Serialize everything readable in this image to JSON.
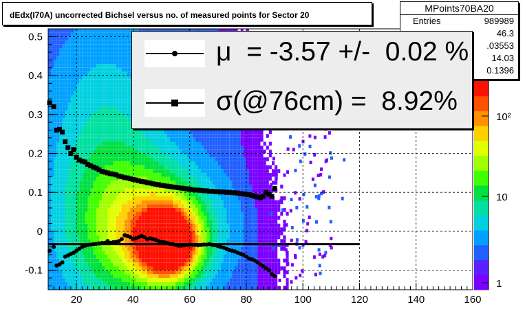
{
  "title": "dEdx(I70A) uncorrected Bichsel versus no. of measured points for Sector 20",
  "stats": {
    "name": "MPoints70BA20",
    "rows": [
      {
        "label": "Entries",
        "value": "989989"
      },
      {
        "label": "",
        "value": "46.3"
      },
      {
        "label": "",
        "value": ".03553"
      },
      {
        "label": "",
        "value": "14.03"
      },
      {
        "label": "",
        "value": "0.1396"
      }
    ]
  },
  "legend": {
    "mu_text": "μ  = -3.57 +/-  0.02 %",
    "sigma_text": "σ(@76cm) =  8.92%"
  },
  "colors": {
    "palette": [
      "#7a00ff",
      "#5a20ff",
      "#2060ff",
      "#00a0ff",
      "#00d0e0",
      "#00e0a0",
      "#00e040",
      "#40ff00",
      "#a0ff00",
      "#e0ff00",
      "#ffd000",
      "#ff9000",
      "#ff5000",
      "#ff1000"
    ]
  },
  "chart_data": {
    "type": "heatmap",
    "xlim": [
      10,
      160
    ],
    "ylim": [
      -0.15,
      0.52
    ],
    "x_ticks": [
      "20",
      "40",
      "60",
      "80",
      "100",
      "120",
      "140",
      "160"
    ],
    "y_ticks": [
      "-0.1",
      "0",
      "0.1",
      "0.2",
      "0.3",
      "0.4",
      "0.5"
    ],
    "color_scale": {
      "type": "log",
      "ticks": [
        "1",
        "10",
        "10²"
      ]
    },
    "grid": true,
    "mean_points": [
      [
        10.5,
        -0.05
      ],
      [
        12,
        -0.04
      ],
      [
        13,
        -0.088
      ],
      [
        14,
        -0.085
      ],
      [
        15,
        -0.08
      ],
      [
        16,
        -0.065
      ],
      [
        17,
        -0.062
      ],
      [
        18,
        -0.058
      ],
      [
        19,
        -0.055
      ],
      [
        20,
        -0.05
      ],
      [
        21,
        -0.045
      ],
      [
        22,
        -0.04
      ],
      [
        23,
        -0.037
      ],
      [
        24,
        -0.035
      ],
      [
        25,
        -0.034
      ],
      [
        26,
        -0.033
      ],
      [
        27,
        -0.032
      ],
      [
        28,
        -0.031
      ],
      [
        29,
        -0.03
      ],
      [
        30,
        -0.03
      ],
      [
        31,
        -0.025
      ],
      [
        32,
        -0.03
      ],
      [
        33,
        -0.028
      ],
      [
        34,
        -0.027
      ],
      [
        35,
        -0.025
      ],
      [
        36,
        -0.02
      ],
      [
        37,
        -0.01
      ],
      [
        38,
        -0.012
      ],
      [
        39,
        -0.015
      ],
      [
        40,
        -0.02
      ],
      [
        41,
        -0.018
      ],
      [
        42,
        -0.015
      ],
      [
        43,
        -0.012
      ],
      [
        44,
        -0.015
      ],
      [
        45,
        -0.02
      ],
      [
        46,
        -0.018
      ],
      [
        47,
        -0.02
      ],
      [
        48,
        -0.022
      ],
      [
        49,
        -0.025
      ],
      [
        50,
        -0.027
      ],
      [
        51,
        -0.028
      ],
      [
        52,
        -0.03
      ],
      [
        53,
        -0.032
      ],
      [
        54,
        -0.033
      ],
      [
        55,
        -0.035
      ],
      [
        56,
        -0.037
      ],
      [
        57,
        -0.037
      ],
      [
        58,
        -0.036
      ],
      [
        59,
        -0.035
      ],
      [
        60,
        -0.034
      ],
      [
        61,
        -0.035
      ],
      [
        62,
        -0.035
      ],
      [
        63,
        -0.036
      ],
      [
        64,
        -0.035
      ],
      [
        65,
        -0.034
      ],
      [
        66,
        -0.034
      ],
      [
        67,
        -0.033
      ],
      [
        68,
        -0.035
      ],
      [
        69,
        -0.036
      ],
      [
        70,
        -0.038
      ],
      [
        71,
        -0.04
      ],
      [
        72,
        -0.042
      ],
      [
        73,
        -0.045
      ],
      [
        74,
        -0.048
      ],
      [
        75,
        -0.05
      ],
      [
        76,
        -0.052
      ],
      [
        77,
        -0.055
      ],
      [
        78,
        -0.058
      ],
      [
        79,
        -0.06
      ],
      [
        80,
        -0.065
      ],
      [
        81,
        -0.07
      ],
      [
        82,
        -0.072
      ],
      [
        83,
        -0.075
      ],
      [
        84,
        -0.08
      ],
      [
        85,
        -0.085
      ],
      [
        86,
        -0.09
      ],
      [
        87,
        -0.095
      ],
      [
        88,
        -0.1
      ],
      [
        89,
        -0.11
      ],
      [
        90,
        -0.115
      ]
    ],
    "sigma_points": [
      [
        10.5,
        0.33
      ],
      [
        12,
        0.32
      ],
      [
        13,
        0.26
      ],
      [
        14,
        0.262
      ],
      [
        15,
        0.255
      ],
      [
        16,
        0.23
      ],
      [
        17,
        0.215
      ],
      [
        18,
        0.2
      ],
      [
        19,
        0.21
      ],
      [
        20,
        0.19
      ],
      [
        21,
        0.183
      ],
      [
        22,
        0.18
      ],
      [
        23,
        0.178
      ],
      [
        24,
        0.172
      ],
      [
        25,
        0.168
      ],
      [
        26,
        0.165
      ],
      [
        27,
        0.162
      ],
      [
        28,
        0.158
      ],
      [
        29,
        0.154
      ],
      [
        30,
        0.152
      ],
      [
        31,
        0.15
      ],
      [
        32,
        0.148
      ],
      [
        33,
        0.147
      ],
      [
        34,
        0.145
      ],
      [
        35,
        0.142
      ],
      [
        36,
        0.14
      ],
      [
        37,
        0.138
      ],
      [
        38,
        0.137
      ],
      [
        39,
        0.135
      ],
      [
        40,
        0.133
      ],
      [
        41,
        0.132
      ],
      [
        42,
        0.13
      ],
      [
        43,
        0.128
      ],
      [
        44,
        0.127
      ],
      [
        45,
        0.125
      ],
      [
        46,
        0.124
      ],
      [
        47,
        0.122
      ],
      [
        48,
        0.121
      ],
      [
        49,
        0.12
      ],
      [
        50,
        0.118
      ],
      [
        51,
        0.117
      ],
      [
        52,
        0.116
      ],
      [
        53,
        0.115
      ],
      [
        54,
        0.114
      ],
      [
        55,
        0.113
      ],
      [
        56,
        0.112
      ],
      [
        57,
        0.111
      ],
      [
        58,
        0.11
      ],
      [
        59,
        0.109
      ],
      [
        60,
        0.108
      ],
      [
        61,
        0.107
      ],
      [
        62,
        0.106
      ],
      [
        63,
        0.106
      ],
      [
        64,
        0.105
      ],
      [
        65,
        0.104
      ],
      [
        66,
        0.104
      ],
      [
        67,
        0.103
      ],
      [
        68,
        0.103
      ],
      [
        69,
        0.102
      ],
      [
        70,
        0.102
      ],
      [
        71,
        0.101
      ],
      [
        72,
        0.101
      ],
      [
        73,
        0.1
      ],
      [
        74,
        0.1
      ],
      [
        75,
        0.099
      ],
      [
        76,
        0.099
      ],
      [
        77,
        0.098
      ],
      [
        78,
        0.097
      ],
      [
        79,
        0.096
      ],
      [
        80,
        0.095
      ],
      [
        81,
        0.094
      ],
      [
        82,
        0.092
      ],
      [
        83,
        0.09
      ],
      [
        84,
        0.088
      ],
      [
        85,
        0.086
      ],
      [
        86,
        0.09
      ],
      [
        87,
        0.1
      ],
      [
        88,
        0.095
      ],
      [
        89,
        0.09
      ],
      [
        90,
        0.11
      ]
    ],
    "mean_line": {
      "x": [
        10,
        120
      ],
      "y": -0.033
    }
  }
}
